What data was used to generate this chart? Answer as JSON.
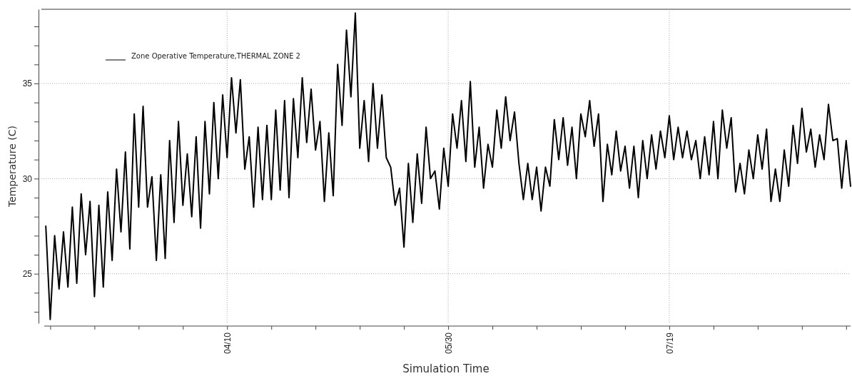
{
  "chart_data": {
    "type": "line",
    "xlabel": "Simulation Time",
    "ylabel": "Temperature (C)",
    "xlim": [
      "--02-27",
      "--08-29"
    ],
    "xticks": [
      {
        "value": "--03-01",
        "label": null
      },
      {
        "value": "--03-11",
        "label": null
      },
      {
        "value": "--03-21",
        "label": null
      },
      {
        "value": "--03-31",
        "label": null
      },
      {
        "value": "--04-10",
        "label": "04/10"
      },
      {
        "value": "--04-20",
        "label": null
      },
      {
        "value": "--04-30",
        "label": null
      },
      {
        "value": "--05-10",
        "label": null
      },
      {
        "value": "--05-20",
        "label": null
      },
      {
        "value": "--05-30",
        "label": "05/30"
      },
      {
        "value": "--06-09",
        "label": null
      },
      {
        "value": "--06-19",
        "label": null
      },
      {
        "value": "--06-29",
        "label": null
      },
      {
        "value": "--07-09",
        "label": null
      },
      {
        "value": "--07-19",
        "label": "07/19"
      },
      {
        "value": "--07-29",
        "label": null
      },
      {
        "value": "--08-08",
        "label": null
      },
      {
        "value": "--08-18",
        "label": null
      },
      {
        "value": "--08-28",
        "label": null
      }
    ],
    "ylim": [
      22.4,
      38.9
    ],
    "yticks": [
      {
        "value": 23,
        "label": null
      },
      {
        "value": 24,
        "label": null
      },
      25,
      {
        "value": 26,
        "label": null
      },
      {
        "value": 27,
        "label": null
      },
      {
        "value": 28,
        "label": null
      },
      {
        "value": 29,
        "label": null
      },
      30,
      {
        "value": 31,
        "label": null
      },
      {
        "value": 32,
        "label": null
      },
      {
        "value": 33,
        "label": null
      },
      {
        "value": 34,
        "label": null
      },
      35,
      {
        "value": 36,
        "label": null
      },
      {
        "value": 37,
        "label": null
      },
      {
        "value": 38,
        "label": null
      }
    ],
    "grid": true,
    "legend": "top left",
    "marker": "none",
    "line_style": "solid",
    "series": [
      {
        "name": "Zone Operative Temperature,THERMAL ZONE 2",
        "color": "#000000",
        "x": [
          "--02-28",
          "--03-01",
          "--03-02",
          "--03-03",
          "--03-04",
          "--03-05",
          "--03-06",
          "--03-07",
          "--03-08",
          "--03-09",
          "--03-10",
          "--03-11",
          "--03-12",
          "--03-13",
          "--03-14",
          "--03-15",
          "--03-16",
          "--03-17",
          "--03-18",
          "--03-19",
          "--03-20",
          "--03-21",
          "--03-22",
          "--03-23",
          "--03-24",
          "--03-25",
          "--03-26",
          "--03-27",
          "--03-28",
          "--03-29",
          "--03-30",
          "--03-31",
          "--04-01",
          "--04-02",
          "--04-03",
          "--04-04",
          "--04-05",
          "--04-06",
          "--04-07",
          "--04-08",
          "--04-09",
          "--04-10",
          "--04-11",
          "--04-12",
          "--04-13",
          "--04-14",
          "--04-15",
          "--04-16",
          "--04-17",
          "--04-18",
          "--04-19",
          "--04-20",
          "--04-21",
          "--04-22",
          "--04-23",
          "--04-24",
          "--04-25",
          "--04-26",
          "--04-27",
          "--04-28",
          "--04-29",
          "--04-30",
          "--05-01",
          "--05-02",
          "--05-03",
          "--05-04",
          "--05-05",
          "--05-06",
          "--05-07",
          "--05-08",
          "--05-09",
          "--05-10",
          "--05-11",
          "--05-12",
          "--05-13",
          "--05-14",
          "--05-15",
          "--05-16",
          "--05-17",
          "--05-18",
          "--05-19",
          "--05-20",
          "--05-21",
          "--05-22",
          "--05-23",
          "--05-24",
          "--05-25",
          "--05-26",
          "--05-27",
          "--05-28",
          "--05-29",
          "--05-30",
          "--05-31",
          "--06-01",
          "--06-02",
          "--06-03",
          "--06-04",
          "--06-05",
          "--06-06",
          "--06-07",
          "--06-08",
          "--06-09",
          "--06-10",
          "--06-11",
          "--06-12",
          "--06-13",
          "--06-14",
          "--06-15",
          "--06-16",
          "--06-17",
          "--06-18",
          "--06-19",
          "--06-20",
          "--06-21",
          "--06-22",
          "--06-23",
          "--06-24",
          "--06-25",
          "--06-26",
          "--06-27",
          "--06-28",
          "--06-29",
          "--06-30",
          "--07-01",
          "--07-02",
          "--07-03",
          "--07-04",
          "--07-05",
          "--07-06",
          "--07-07",
          "--07-08",
          "--07-09",
          "--07-10",
          "--07-11",
          "--07-12",
          "--07-13",
          "--07-14",
          "--07-15",
          "--07-16",
          "--07-17",
          "--07-18",
          "--07-19",
          "--07-20",
          "--07-21",
          "--07-22",
          "--07-23",
          "--07-24",
          "--07-25",
          "--07-26",
          "--07-27",
          "--07-28",
          "--07-29",
          "--07-30",
          "--07-31",
          "--08-01",
          "--08-02",
          "--08-03",
          "--08-04",
          "--08-05",
          "--08-06",
          "--08-07",
          "--08-08",
          "--08-09",
          "--08-10",
          "--08-11",
          "--08-12",
          "--08-13",
          "--08-14",
          "--08-15",
          "--08-16",
          "--08-17",
          "--08-18",
          "--08-19",
          "--08-20",
          "--08-21",
          "--08-22",
          "--08-23",
          "--08-24",
          "--08-25",
          "--08-26",
          "--08-27",
          "--08-28",
          "--08-29"
        ],
        "values": [
          27.5,
          22.6,
          27.0,
          24.2,
          27.2,
          24.3,
          28.5,
          24.5,
          29.2,
          26.0,
          28.8,
          23.8,
          28.6,
          24.3,
          29.3,
          25.7,
          30.5,
          27.2,
          31.4,
          26.3,
          33.4,
          28.5,
          33.8,
          28.5,
          30.1,
          25.7,
          30.2,
          25.8,
          32.0,
          27.7,
          33.0,
          28.6,
          31.3,
          28.0,
          32.2,
          27.4,
          33.0,
          29.2,
          34.0,
          30.0,
          34.4,
          31.1,
          35.3,
          32.4,
          35.2,
          30.5,
          32.2,
          28.5,
          32.7,
          28.9,
          32.8,
          28.9,
          33.6,
          29.4,
          34.1,
          29.0,
          34.2,
          31.1,
          35.3,
          31.9,
          34.7,
          31.5,
          33.0,
          28.8,
          32.4,
          29.1,
          36.0,
          32.8,
          37.8,
          34.3,
          38.7,
          31.6,
          34.1,
          30.9,
          35.0,
          31.6,
          34.4,
          31.1,
          30.6,
          28.6,
          29.5,
          26.4,
          30.8,
          27.7,
          31.3,
          28.7,
          32.7,
          30.0,
          30.4,
          28.4,
          31.6,
          29.6,
          33.4,
          31.6,
          34.1,
          30.9,
          35.1,
          30.6,
          32.7,
          29.5,
          31.8,
          30.6,
          33.6,
          31.6,
          34.3,
          32.0,
          33.5,
          30.8,
          28.9,
          30.8,
          28.9,
          30.6,
          28.3,
          30.6,
          29.6,
          33.1,
          31.0,
          33.2,
          30.7,
          32.7,
          30.0,
          33.4,
          32.2,
          34.1,
          31.7,
          33.4,
          28.8,
          31.8,
          30.2,
          32.5,
          30.4,
          31.7,
          29.5,
          31.7,
          29.0,
          32.0,
          30.0,
          32.3,
          30.5,
          32.5,
          31.1,
          33.3,
          31.0,
          32.7,
          31.1,
          32.5,
          31.0,
          32.0,
          30.0,
          32.2,
          30.2,
          33.0,
          30.0,
          33.6,
          31.6,
          33.2,
          29.3,
          30.8,
          29.2,
          31.5,
          30.0,
          32.3,
          30.5,
          32.6,
          28.8,
          30.5,
          28.8,
          31.5,
          29.6,
          32.8,
          30.8,
          33.7,
          31.4,
          32.6,
          30.6,
          32.3,
          31.0,
          33.9,
          32.0,
          32.1,
          29.5,
          32.0,
          29.6
        ]
      }
    ]
  }
}
